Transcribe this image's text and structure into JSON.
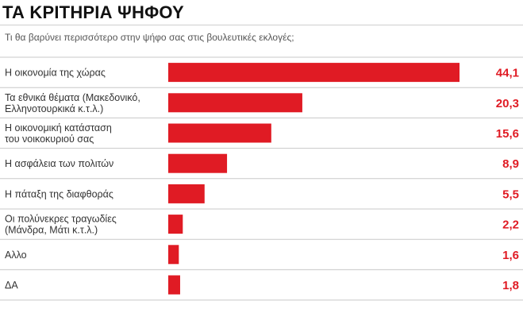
{
  "title": "ΤΑ ΚΡΙΤΗΡΙΑ ΨΗΦΟΥ",
  "subtitle": "Τι θα βαρύνει περισσότερο στην ψήφο σας στις βουλευτικές εκλογές;",
  "colors": {
    "bar": "#e01b24",
    "value_text": "#e01b24",
    "row_divider": "#c8c8c8"
  },
  "chart_data": {
    "type": "bar",
    "orientation": "horizontal",
    "categories": [
      [
        "Η οικονομία της χώρας"
      ],
      [
        "Τα εθνικά θέματα (Μακεδονικό,",
        "Ελληνοτουρκικά κ.τ.λ.)"
      ],
      [
        "Η οικονομική κατάσταση",
        "του νοικοκυριού σας"
      ],
      [
        "Η ασφάλεια των πολιτών"
      ],
      [
        "Η πάταξη της διαφθοράς"
      ],
      [
        "Οι πολύνεκρες τραγωδίες",
        "(Μάνδρα, Μάτι κ.τ.λ.)"
      ],
      [
        "Αλλο"
      ],
      [
        "ΔΑ"
      ]
    ],
    "values": [
      44.1,
      20.3,
      15.6,
      8.9,
      5.5,
      2.2,
      1.6,
      1.8
    ],
    "value_labels": [
      "44,1",
      "20,3",
      "15,6",
      "8,9",
      "5,5",
      "2,2",
      "1,6",
      "1,8"
    ],
    "xlim": [
      0,
      44.1
    ],
    "grid": false,
    "legend": "none"
  }
}
